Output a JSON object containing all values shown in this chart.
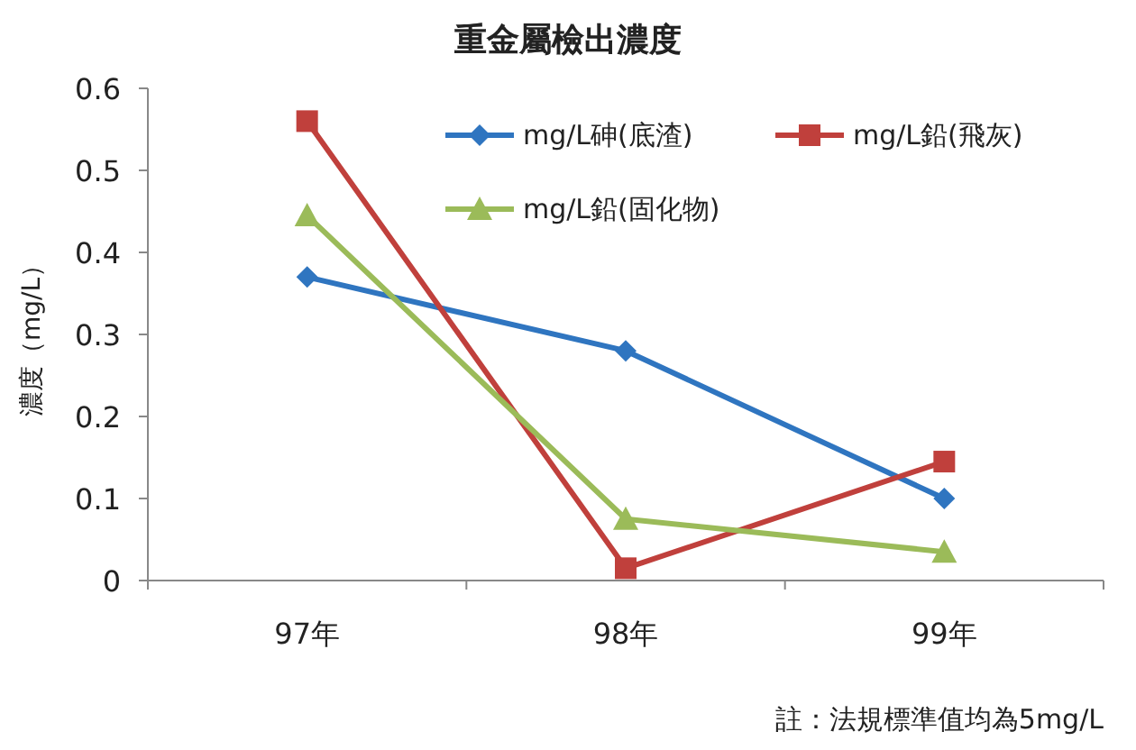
{
  "chart_data": {
    "type": "line",
    "title": "重金屬檢出濃度",
    "ylabel": "濃度（mg/L）",
    "categories": [
      "97年",
      "98年",
      "99年"
    ],
    "series": [
      {
        "name": "mg/L砷(底渣)",
        "color": "#2f75c0",
        "marker": "diamond",
        "values": [
          0.37,
          0.28,
          0.1
        ]
      },
      {
        "name": "mg/L鉛(飛灰)",
        "color": "#c0403c",
        "marker": "square",
        "values": [
          0.56,
          0.015,
          0.145
        ]
      },
      {
        "name": "mg/L鉛(固化物)",
        "color": "#9bbb59",
        "marker": "triangle",
        "values": [
          0.445,
          0.075,
          0.035
        ]
      }
    ],
    "ylim": [
      0,
      0.6
    ],
    "yticks": [
      0,
      0.1,
      0.2,
      0.3,
      0.4,
      0.5,
      0.6
    ],
    "grid": false,
    "legend": "top right",
    "line_style": "solid",
    "annotations": [
      "註：法規標準值均為5mg/L"
    ]
  }
}
